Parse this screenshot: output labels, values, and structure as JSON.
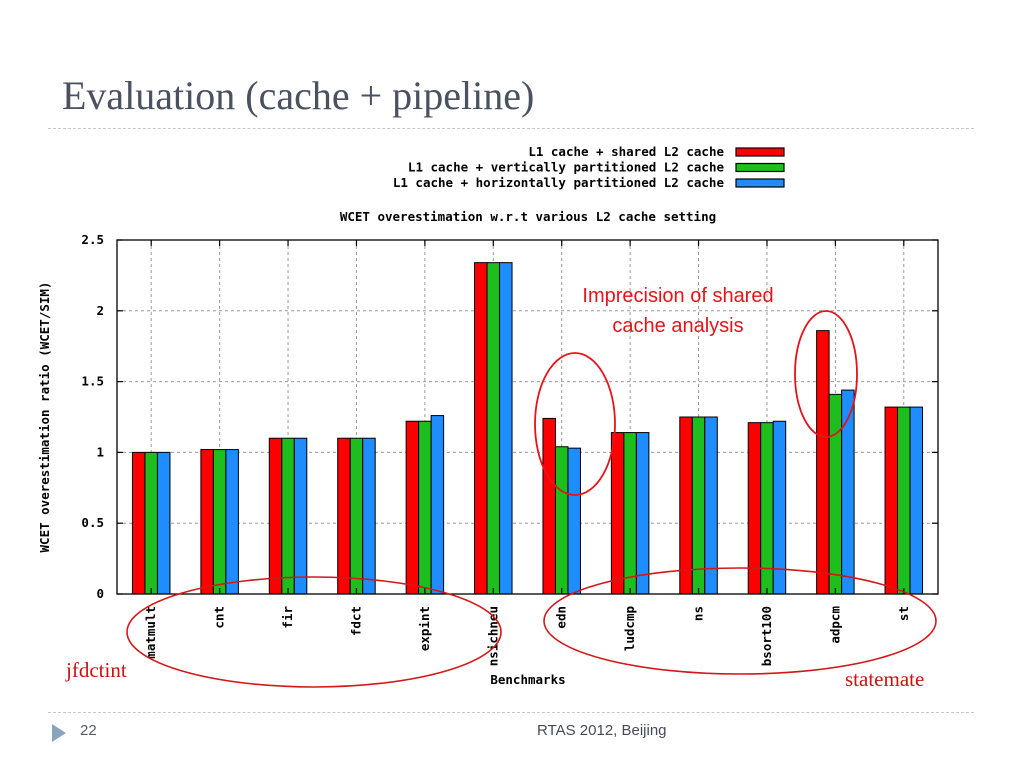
{
  "slide": {
    "title": "Evaluation (cache + pipeline)",
    "page_number": "22",
    "footer": "RTAS 2012, Beijing"
  },
  "annotations": {
    "imprecision_line1": "Imprecision of shared",
    "imprecision_line2": "cache analysis",
    "group_left": "jfdctint",
    "group_right": "statemate"
  },
  "colors": {
    "shared": "#ff0000",
    "vertical": "#1ebe1e",
    "horizontal": "#1f8cff",
    "annotation": "#e5141a"
  },
  "chart_data": {
    "type": "bar",
    "title": "WCET overestimation w.r.t various L2 cache setting",
    "xlabel": "Benchmarks",
    "ylabel": "WCET overestimation ratio (WCET/SIM)",
    "ylim": [
      0,
      2.5
    ],
    "yticks": [
      "0",
      "0.5",
      "1",
      "1.5",
      "2",
      "2.5"
    ],
    "grid": true,
    "legend_position": "top-right",
    "categories": [
      "matmult",
      "cnt",
      "fir",
      "fdct",
      "expint",
      "nsichneu",
      "edn",
      "ludcmp",
      "ns",
      "bsort100",
      "adpcm",
      "st"
    ],
    "series": [
      {
        "name": "L1 cache + shared L2 cache",
        "color": "#ff0000",
        "values": [
          1.0,
          1.02,
          1.1,
          1.1,
          1.22,
          2.34,
          1.24,
          1.14,
          1.25,
          1.21,
          1.86,
          1.32
        ]
      },
      {
        "name": "L1 cache + vertically partitioned L2 cache",
        "color": "#1ebe1e",
        "values": [
          1.0,
          1.02,
          1.1,
          1.1,
          1.22,
          2.34,
          1.04,
          1.14,
          1.25,
          1.21,
          1.41,
          1.32
        ]
      },
      {
        "name": "L1 cache + horizontally partitioned L2 cache",
        "color": "#1f8cff",
        "values": [
          1.0,
          1.02,
          1.1,
          1.1,
          1.26,
          2.34,
          1.03,
          1.14,
          1.25,
          1.22,
          1.44,
          1.32
        ]
      }
    ]
  }
}
